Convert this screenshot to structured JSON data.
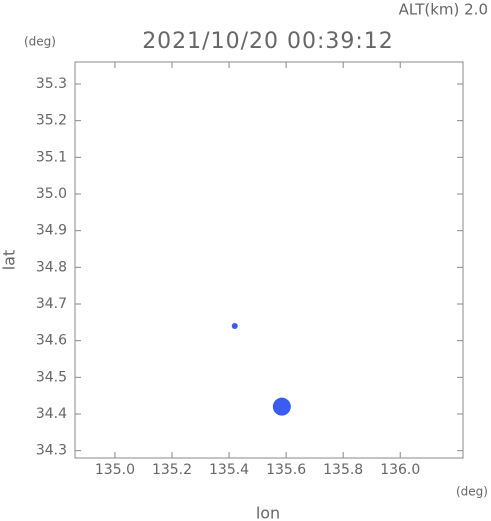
{
  "chart_data": {
    "type": "scatter",
    "annotation": "ALT(km) 2.0",
    "title": "2021/10/20 00:39:12",
    "ylabel": "lat",
    "yunit": "(deg)",
    "xlabel": "lon",
    "xunit": "(deg)",
    "xlim": [
      134.86,
      136.22
    ],
    "ylim": [
      34.28,
      35.36
    ],
    "xticks": [
      {
        "value": 135.0,
        "label": "135.0"
      },
      135.2,
      135.4,
      135.6,
      135.8,
      {
        "value": 136.0,
        "label": "136.0"
      }
    ],
    "yticks": [
      34.3,
      34.4,
      34.5,
      34.6,
      34.7,
      34.8,
      34.9,
      {
        "value": 35.0,
        "label": "35.0"
      },
      35.1,
      35.2,
      35.3
    ],
    "series": [
      {
        "color": "#3a5cf0",
        "x": [
          135.42,
          135.585
        ],
        "values": [
          34.64,
          34.42
        ],
        "sizes": [
          3,
          9
        ]
      }
    ]
  }
}
